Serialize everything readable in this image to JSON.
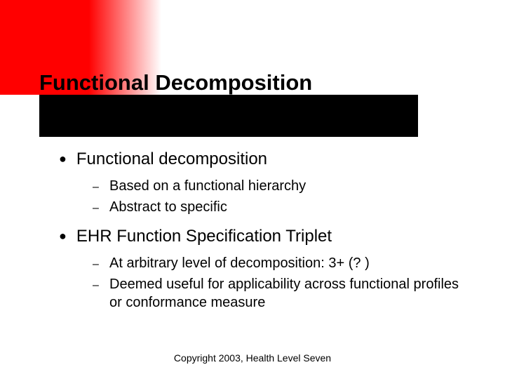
{
  "slide": {
    "title": "Functional Decomposition",
    "title_fontsize": 31,
    "title_fontweight": "bold",
    "title_color": "#000000",
    "accent_gradient_from": "#ff0000",
    "accent_gradient_to": "#ffffff",
    "title_bar_color": "#000000",
    "background_color": "#ffffff",
    "bullets": [
      {
        "text": "Functional decomposition",
        "sub": [
          "Based on a functional hierarchy",
          "Abstract to specific"
        ]
      },
      {
        "text": "EHR Function Specification Triplet",
        "sub": [
          "At arbitrary level of decomposition:  3+ (? )",
          "Deemed useful for applicability across functional profiles or conformance measure"
        ]
      }
    ],
    "bullet_fontsize": 24,
    "sub_fontsize": 20,
    "bullet_marker": "●",
    "sub_marker": "–",
    "text_color": "#000000",
    "footer": "Copyright 2003, Health Level Seven",
    "footer_fontsize": 14
  }
}
